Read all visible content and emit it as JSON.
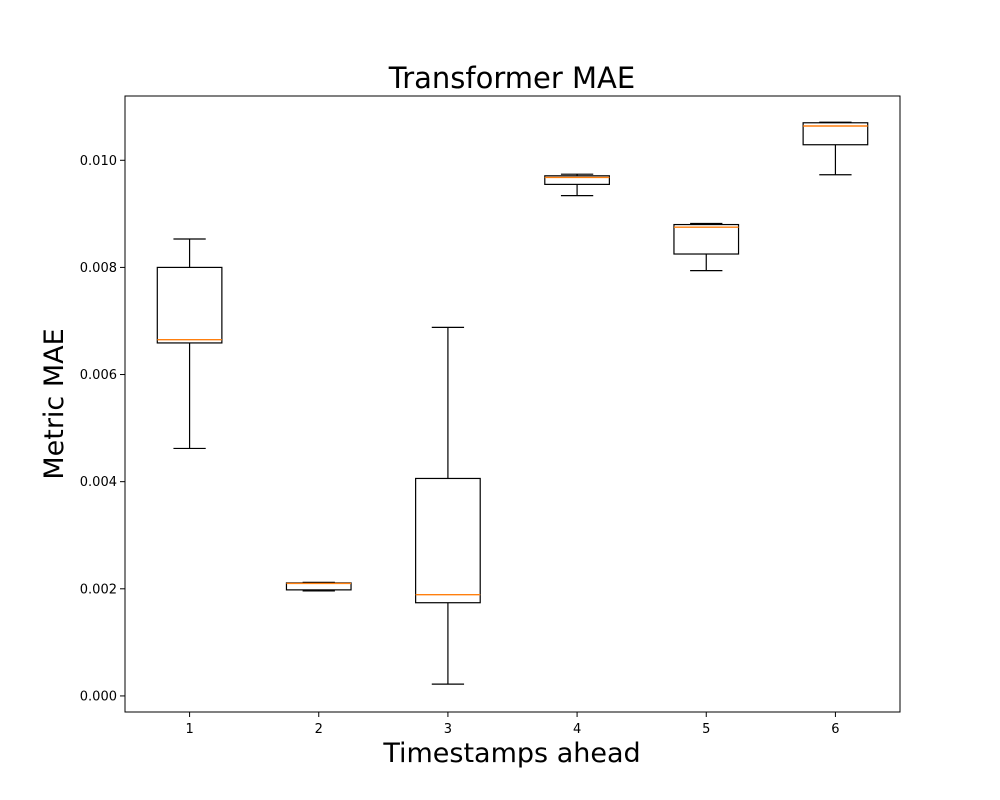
{
  "chart_data": {
    "type": "box",
    "title": "Transformer MAE",
    "xlabel": "Timestamps ahead",
    "ylabel": "Metric MAE",
    "categories": [
      "1",
      "2",
      "3",
      "4",
      "5",
      "6"
    ],
    "boxes": [
      {
        "category": "1",
        "whisker_low": 0.00462,
        "q1": 0.00659,
        "median": 0.00665,
        "q3": 0.008,
        "whisker_high": 0.00853
      },
      {
        "category": "2",
        "whisker_low": 0.00196,
        "q1": 0.00198,
        "median": 0.0021,
        "q3": 0.00211,
        "whisker_high": 0.00212
      },
      {
        "category": "3",
        "whisker_low": 0.00022,
        "q1": 0.00174,
        "median": 0.00189,
        "q3": 0.00406,
        "whisker_high": 0.00688
      },
      {
        "category": "4",
        "whisker_low": 0.00934,
        "q1": 0.00955,
        "median": 0.00968,
        "q3": 0.00971,
        "whisker_high": 0.00974
      },
      {
        "category": "5",
        "whisker_low": 0.00794,
        "q1": 0.00825,
        "median": 0.00875,
        "q3": 0.0088,
        "whisker_high": 0.00882
      },
      {
        "category": "6",
        "whisker_low": 0.00973,
        "q1": 0.01029,
        "median": 0.01064,
        "q3": 0.0107,
        "whisker_high": 0.01071
      }
    ],
    "ylim": [
      -0.0003,
      0.0112
    ],
    "yticks": [
      "0.000",
      "0.002",
      "0.004",
      "0.006",
      "0.008",
      "0.010"
    ],
    "ytick_values": [
      0.0,
      0.002,
      0.004,
      0.006,
      0.008,
      0.01
    ],
    "grid": false,
    "colors": {
      "box": "#000000",
      "median": "#ff7f0e",
      "background": "#ffffff"
    }
  }
}
